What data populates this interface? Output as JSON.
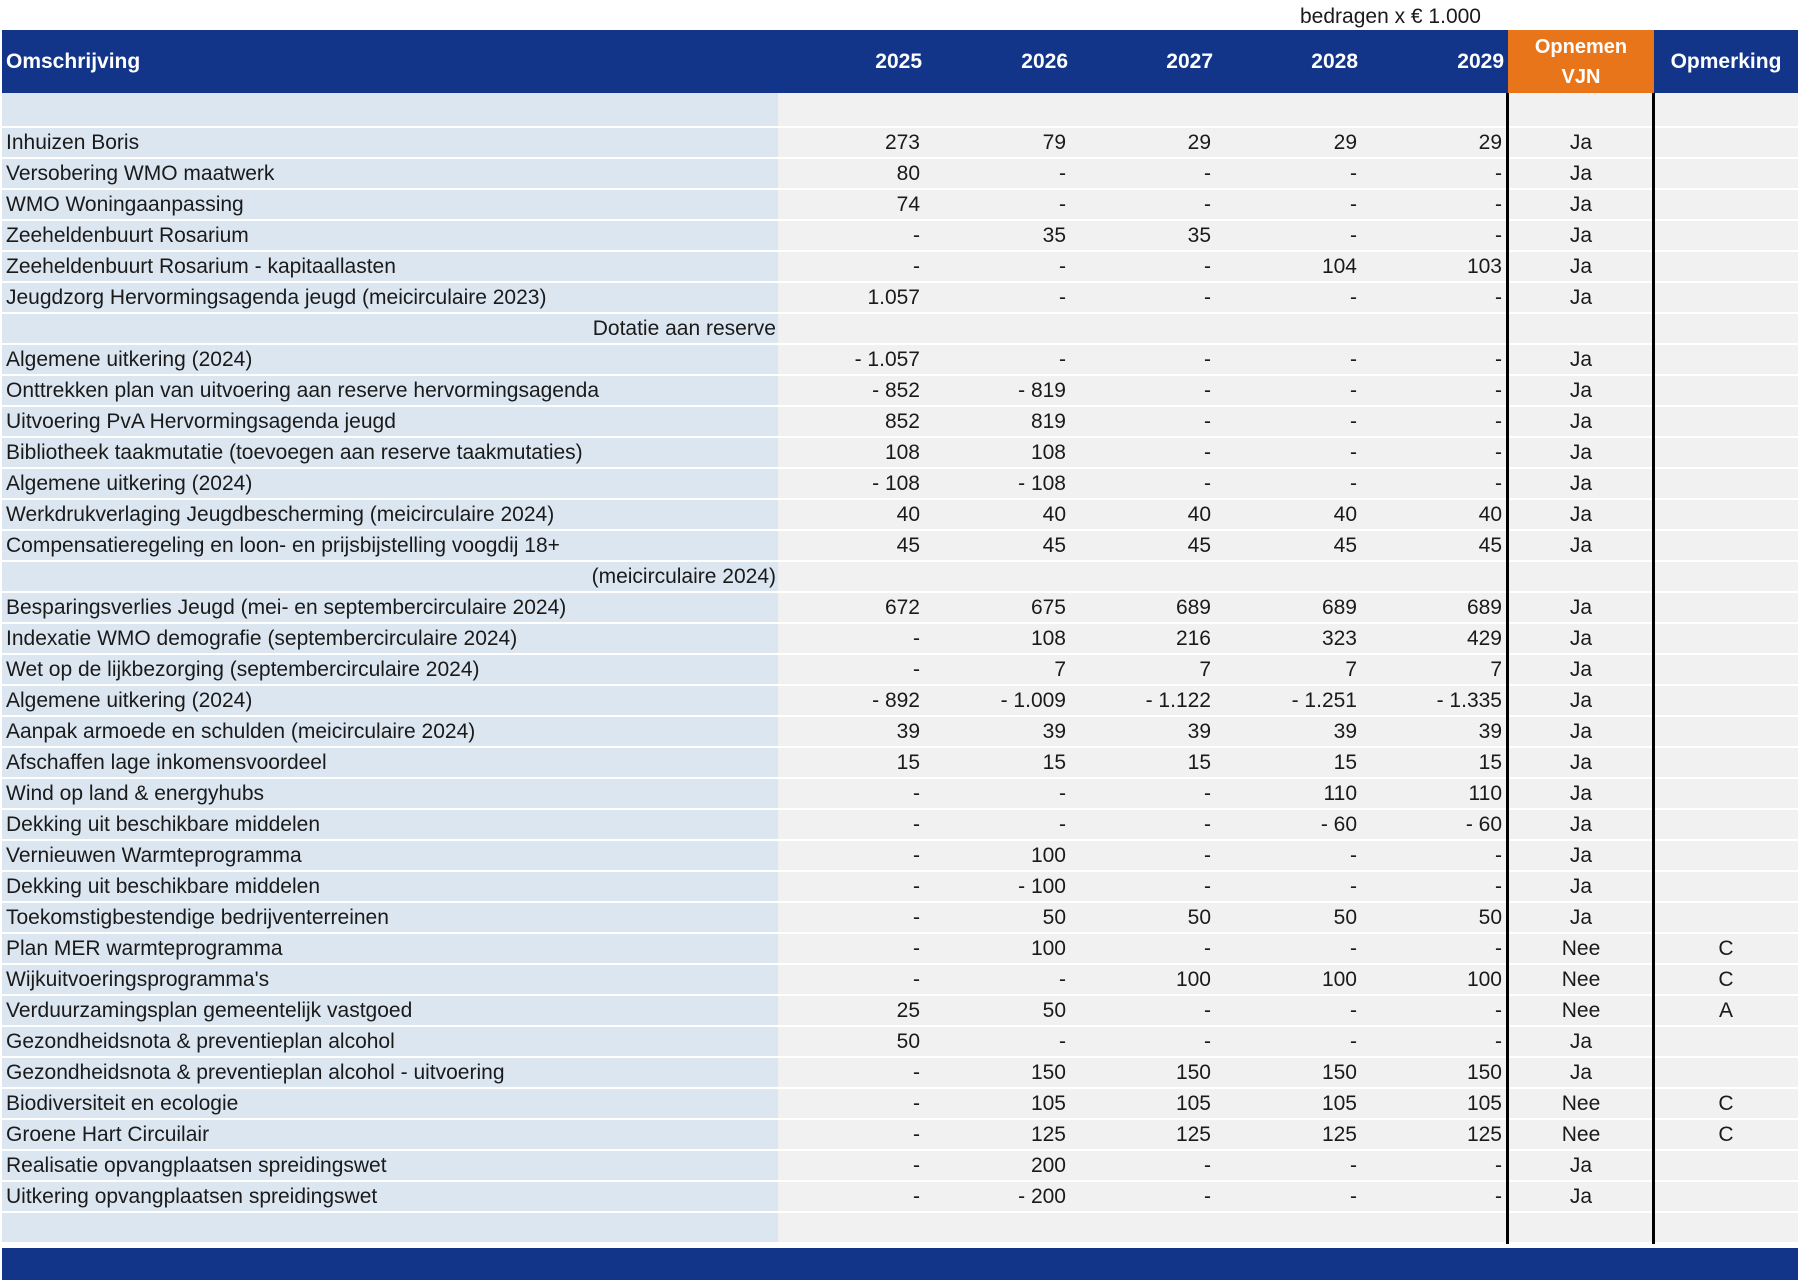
{
  "unit_note": "bedragen x € 1.000",
  "header": {
    "omschrijving": "Omschrijving",
    "years": [
      "2025",
      "2026",
      "2027",
      "2028",
      "2029"
    ],
    "vjn_line1": "Opnemen",
    "vjn_line2": "VJN",
    "opmerking": "Opmerking"
  },
  "rows": [
    {
      "desc": "",
      "values": [
        "",
        "",
        "",
        "",
        ""
      ],
      "vjn": "",
      "opm": ""
    },
    {
      "desc": "Inhuizen Boris",
      "values": [
        "273",
        "79",
        "29",
        "29",
        "29"
      ],
      "vjn": "Ja",
      "opm": ""
    },
    {
      "desc": "Versobering WMO maatwerk",
      "values": [
        "80",
        "-",
        "-",
        "-",
        "-"
      ],
      "vjn": "Ja",
      "opm": ""
    },
    {
      "desc": "WMO Woningaanpassing",
      "values": [
        "74",
        "-",
        "-",
        "-",
        "-"
      ],
      "vjn": "Ja",
      "opm": ""
    },
    {
      "desc": "Zeeheldenbuurt Rosarium",
      "values": [
        "-",
        "35",
        "35",
        "-",
        "-"
      ],
      "vjn": "Ja",
      "opm": ""
    },
    {
      "desc": "Zeeheldenbuurt Rosarium - kapitaallasten",
      "values": [
        "-",
        "-",
        "-",
        "104",
        "103"
      ],
      "vjn": "Ja",
      "opm": ""
    },
    {
      "desc": "Jeugdzorg Hervormingsagenda jeugd (meicirculaire 2023)",
      "values": [
        "1.057",
        "-",
        "-",
        "-",
        "-"
      ],
      "vjn": "Ja",
      "opm": ""
    },
    {
      "desc": "Dotatie aan reserve",
      "align": "right",
      "values": [
        "",
        "",
        "",
        "",
        ""
      ],
      "vjn": "",
      "opm": ""
    },
    {
      "desc": "Algemene uitkering (2024)",
      "values": [
        "- 1.057",
        "-",
        "-",
        "-",
        "-"
      ],
      "vjn": "Ja",
      "opm": ""
    },
    {
      "desc": "Onttrekken plan van uitvoering aan reserve hervormingsagenda",
      "values": [
        "- 852",
        "- 819",
        "-",
        "-",
        "-"
      ],
      "vjn": "Ja",
      "opm": ""
    },
    {
      "desc": "Uitvoering PvA Hervormingsagenda jeugd",
      "values": [
        "852",
        "819",
        "-",
        "-",
        "-"
      ],
      "vjn": "Ja",
      "opm": ""
    },
    {
      "desc": "Bibliotheek taakmutatie (toevoegen aan reserve taakmutaties)",
      "values": [
        "108",
        "108",
        "-",
        "-",
        "-"
      ],
      "vjn": "Ja",
      "opm": ""
    },
    {
      "desc": "Algemene uitkering (2024)",
      "values": [
        "- 108",
        "- 108",
        "-",
        "-",
        "-"
      ],
      "vjn": "Ja",
      "opm": ""
    },
    {
      "desc": "Werkdrukverlaging Jeugdbescherming (meicirculaire 2024)",
      "values": [
        "40",
        "40",
        "40",
        "40",
        "40"
      ],
      "vjn": "Ja",
      "opm": ""
    },
    {
      "desc": "Compensatieregeling en loon- en prijsbijstelling voogdij 18+",
      "values": [
        "45",
        "45",
        "45",
        "45",
        "45"
      ],
      "vjn": "Ja",
      "opm": ""
    },
    {
      "desc": "(meicirculaire 2024)",
      "align": "right",
      "values": [
        "",
        "",
        "",
        "",
        ""
      ],
      "vjn": "",
      "opm": ""
    },
    {
      "desc": "Besparingsverlies Jeugd (mei- en septembercirculaire 2024)",
      "values": [
        "672",
        "675",
        "689",
        "689",
        "689"
      ],
      "vjn": "Ja",
      "opm": ""
    },
    {
      "desc": "Indexatie WMO demografie (septembercirculaire 2024)",
      "values": [
        "-",
        "108",
        "216",
        "323",
        "429"
      ],
      "vjn": "Ja",
      "opm": ""
    },
    {
      "desc": "Wet op de lijkbezorging (septembercirculaire 2024)",
      "values": [
        "-",
        "7",
        "7",
        "7",
        "7"
      ],
      "vjn": "Ja",
      "opm": ""
    },
    {
      "desc": "Algemene uitkering (2024)",
      "values": [
        "- 892",
        "- 1.009",
        "- 1.122",
        "- 1.251",
        "- 1.335"
      ],
      "vjn": "Ja",
      "opm": ""
    },
    {
      "desc": "Aanpak armoede en schulden (meicirculaire 2024)",
      "values": [
        "39",
        "39",
        "39",
        "39",
        "39"
      ],
      "vjn": "Ja",
      "opm": ""
    },
    {
      "desc": "Afschaffen lage inkomensvoordeel",
      "values": [
        "15",
        "15",
        "15",
        "15",
        "15"
      ],
      "vjn": "Ja",
      "opm": ""
    },
    {
      "desc": "Wind op land & energyhubs",
      "values": [
        "-",
        "-",
        "-",
        "110",
        "110"
      ],
      "vjn": "Ja",
      "opm": ""
    },
    {
      "desc": "Dekking uit beschikbare middelen",
      "values": [
        "-",
        "-",
        "-",
        "- 60",
        "- 60"
      ],
      "vjn": "Ja",
      "opm": ""
    },
    {
      "desc": "Vernieuwen Warmteprogramma",
      "values": [
        "-",
        "100",
        "-",
        "-",
        "-"
      ],
      "vjn": "Ja",
      "opm": ""
    },
    {
      "desc": "Dekking uit beschikbare middelen",
      "values": [
        "-",
        "- 100",
        "-",
        "-",
        "-"
      ],
      "vjn": "Ja",
      "opm": ""
    },
    {
      "desc": "Toekomstigbestendige bedrijventerreinen",
      "values": [
        "-",
        "50",
        "50",
        "50",
        "50"
      ],
      "vjn": "Ja",
      "opm": ""
    },
    {
      "desc": "Plan MER warmteprogramma",
      "values": [
        "-",
        "100",
        "-",
        "-",
        "-"
      ],
      "vjn": "Nee",
      "opm": "C"
    },
    {
      "desc": "Wijkuitvoeringsprogramma's",
      "values": [
        "-",
        "-",
        "100",
        "100",
        "100"
      ],
      "vjn": "Nee",
      "opm": "C"
    },
    {
      "desc": "Verduurzamingsplan gemeentelijk vastgoed",
      "values": [
        "25",
        "50",
        "-",
        "-",
        "-"
      ],
      "vjn": "Nee",
      "opm": "A"
    },
    {
      "desc": "Gezondheidsnota & preventieplan alcohol",
      "values": [
        "50",
        "-",
        "-",
        "-",
        "-"
      ],
      "vjn": "Ja",
      "opm": ""
    },
    {
      "desc": "Gezondheidsnota & preventieplan alcohol - uitvoering",
      "values": [
        "-",
        "150",
        "150",
        "150",
        "150"
      ],
      "vjn": "Ja",
      "opm": ""
    },
    {
      "desc": "Biodiversiteit en ecologie",
      "values": [
        "-",
        "105",
        "105",
        "105",
        "105"
      ],
      "vjn": "Nee",
      "opm": "C"
    },
    {
      "desc": "Groene Hart Circuilair",
      "values": [
        "-",
        "125",
        "125",
        "125",
        "125"
      ],
      "vjn": "Nee",
      "opm": "C"
    },
    {
      "desc": "Realisatie opvangplaatsen spreidingswet",
      "values": [
        "-",
        "200",
        "-",
        "-",
        "-"
      ],
      "vjn": "Ja",
      "opm": ""
    },
    {
      "desc": "Uitkering opvangplaatsen spreidingswet",
      "values": [
        "-",
        "- 200",
        "-",
        "-",
        "-"
      ],
      "vjn": "Ja",
      "opm": ""
    },
    {
      "desc": "",
      "values": [
        "",
        "",
        "",
        "",
        ""
      ],
      "vjn": "",
      "opm": ""
    }
  ]
}
